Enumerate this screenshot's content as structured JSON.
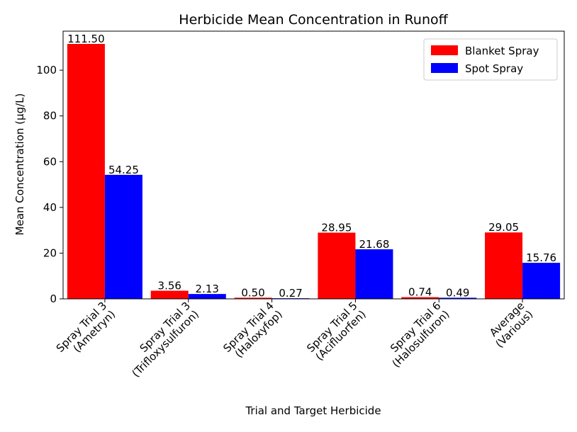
{
  "chart_data": {
    "type": "bar",
    "title": "Herbicide Mean Concentration in Runoff",
    "xlabel": "Trial and Target Herbicide",
    "ylabel": "Mean Concentration (µg/L)",
    "categories": [
      [
        "Spray Trial 3",
        "(Ametryn)"
      ],
      [
        "Spray Trial 3",
        "(Trifloxysulfuron)"
      ],
      [
        "Spray Trial 4",
        "(Haloxyfop)"
      ],
      [
        "Spray Trial 5",
        "(Acifluorfen)"
      ],
      [
        "Spray Trial 6",
        "(Halosulfuron)"
      ],
      [
        "Average",
        "(Various)"
      ]
    ],
    "series": [
      {
        "name": "Blanket Spray",
        "color": "#ff0000",
        "values": [
          111.5,
          3.56,
          0.5,
          28.95,
          0.74,
          29.05
        ]
      },
      {
        "name": "Spot Spray",
        "color": "#0000ff",
        "values": [
          54.25,
          2.13,
          0.27,
          21.68,
          0.49,
          15.76
        ]
      }
    ],
    "value_labels": [
      [
        "111.50",
        "3.56",
        "0.50",
        "28.95",
        "0.74",
        "29.05"
      ],
      [
        "54.25",
        "2.13",
        "0.27",
        "21.68",
        "0.49",
        "15.76"
      ]
    ],
    "ylim": [
      0,
      117.075
    ],
    "yticks": [
      0,
      20,
      40,
      60,
      80,
      100
    ],
    "legend_position": "top-right",
    "grid": false
  }
}
